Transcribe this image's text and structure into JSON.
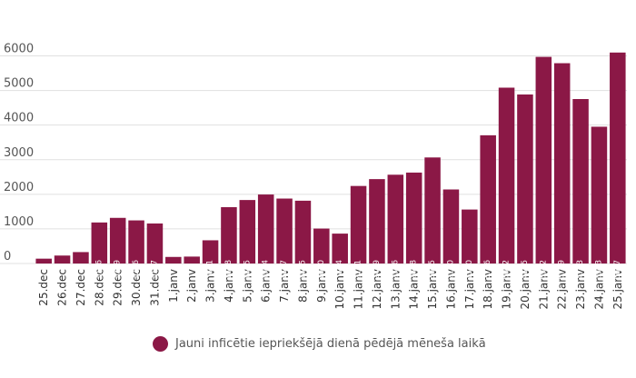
{
  "chart_data": {
    "type": "bar",
    "categories": [
      "25.dec",
      "26.dec",
      "27.dec",
      "28.dec",
      "29.dec",
      "30.dec",
      "31.dec",
      "1.janv",
      "2.janv",
      "3.janv",
      "4.janv",
      "5.janv",
      "6.janv",
      "7.janv",
      "8.janv",
      "9.janv",
      "10.janv",
      "11.janv",
      "12.janv",
      "13.janv",
      "14.janv",
      "15.janv",
      "16.janv",
      "17.janv",
      "18.janv",
      "19.janv",
      "20.janv",
      "21.janv",
      "22.janv",
      "23.janv",
      "24.janv",
      "25.janv"
    ],
    "series": [
      {
        "name": "Jauni inficētie iepriekšējā dienā pēdējā mēneša laikā",
        "values": [
          140,
          230,
          330,
          1186,
          1319,
          1246,
          1157,
          190,
          200,
          671,
          1628,
          1835,
          1994,
          1877,
          1815,
          1010,
          864,
          2241,
          2439,
          2566,
          2628,
          3065,
          2140,
          1560,
          3706,
          5082,
          4885,
          5972,
          5789,
          4753,
          3953,
          6097
        ]
      }
    ],
    "data_labels": [
      "",
      "",
      "",
      "1186",
      "1319",
      "1246",
      "1157",
      "",
      "",
      "671",
      "1628",
      "1835",
      "1994",
      "1877",
      "1815",
      "1010",
      "864",
      "2241",
      "2439",
      "2566",
      "2628",
      "3065",
      "2140",
      "1560",
      "3706",
      "5082",
      "4885",
      "5972",
      "5789",
      "4753",
      "3953",
      "6097"
    ],
    "y_ticks": [
      "0",
      "1000",
      "2000",
      "3000",
      "4000",
      "5000",
      "6000"
    ],
    "ylim": [
      0,
      6250
    ],
    "grid": true,
    "legend_position": "bottom",
    "bar_color": "#8b1846",
    "title": "",
    "xlabel": "",
    "ylabel": ""
  }
}
